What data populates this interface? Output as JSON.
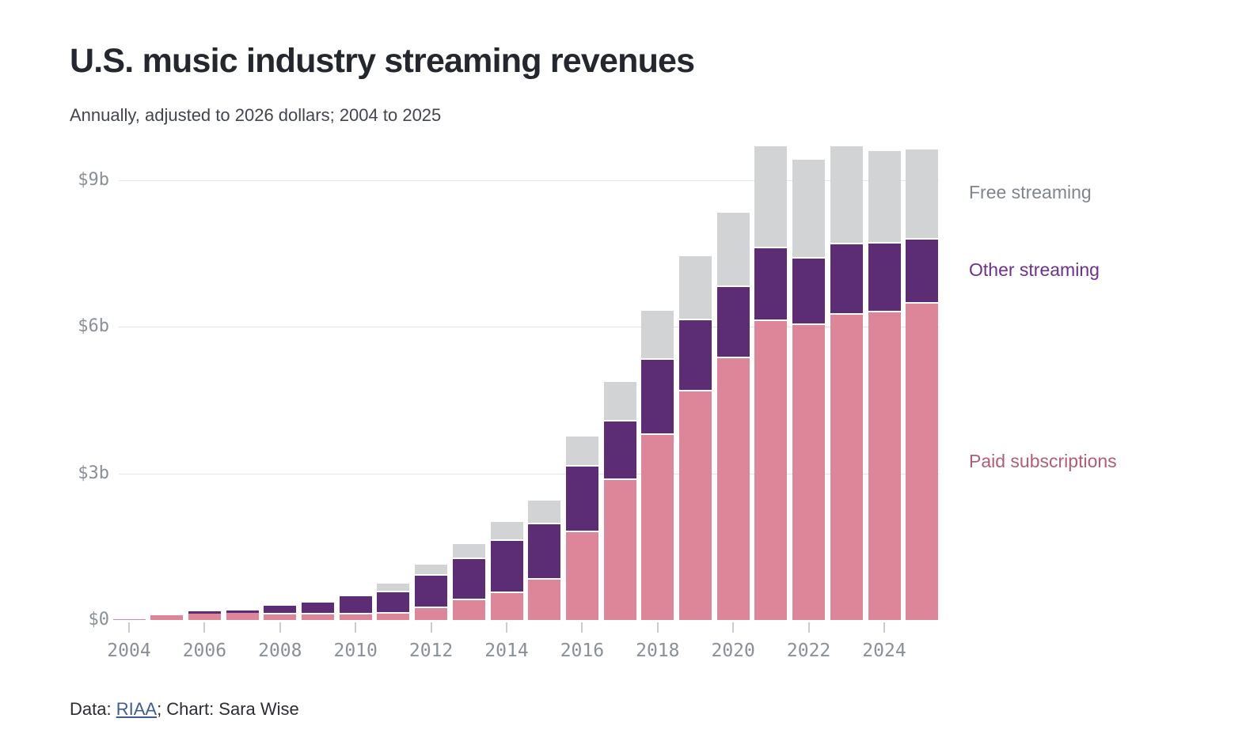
{
  "header": {
    "title": "U.S. music industry streaming revenues",
    "subtitle": "Annually, adjusted to 2026 dollars; 2004 to 2025"
  },
  "footer": {
    "data_prefix": "Data: ",
    "source_link": "RIAA",
    "suffix": "; Chart: Sara Wise"
  },
  "chart_data": {
    "type": "bar",
    "stacked": true,
    "title": "U.S. music industry streaming revenues",
    "subtitle": "Annually, adjusted to 2026 dollars; 2004 to 2025",
    "unit": "billions of 2026 USD",
    "x": [
      2004,
      2005,
      2006,
      2007,
      2008,
      2009,
      2010,
      2011,
      2012,
      2013,
      2014,
      2015,
      2016,
      2017,
      2018,
      2019,
      2020,
      2021,
      2022,
      2023,
      2024,
      2025
    ],
    "series": [
      {
        "name": "Paid subscriptions",
        "color": "#de8699",
        "values": [
          0.02,
          0.1,
          0.13,
          0.15,
          0.12,
          0.12,
          0.12,
          0.13,
          0.25,
          0.4,
          0.55,
          0.82,
          1.79,
          2.86,
          3.79,
          4.68,
          5.36,
          6.12,
          6.04,
          6.25,
          6.29,
          6.48
        ]
      },
      {
        "name": "Other streaming",
        "color": "#5c2c75",
        "values": [
          0,
          0,
          0.04,
          0.05,
          0.17,
          0.24,
          0.37,
          0.44,
          0.65,
          0.85,
          1.07,
          1.13,
          1.35,
          1.2,
          1.54,
          1.45,
          1.46,
          1.48,
          1.36,
          1.43,
          1.41,
          1.3
        ]
      },
      {
        "name": "Free streaming",
        "color": "#d2d3d4",
        "values": [
          0,
          0,
          0,
          0,
          0,
          0,
          0,
          0.17,
          0.23,
          0.31,
          0.39,
          0.5,
          0.62,
          0.81,
          1.0,
          1.31,
          1.51,
          2.1,
          2.01,
          2.02,
          1.9,
          1.85
        ]
      }
    ],
    "y_ticks": [
      {
        "label": "$0",
        "value": 0
      },
      {
        "label": "$3b",
        "value": 3
      },
      {
        "label": "$6b",
        "value": 6
      },
      {
        "label": "$9b",
        "value": 9
      }
    ],
    "x_ticks": [
      2004,
      2006,
      2008,
      2010,
      2012,
      2014,
      2016,
      2018,
      2020,
      2022,
      2024
    ],
    "ylim": [
      0,
      9.9
    ],
    "grid": "horizontal",
    "legend_position": "right",
    "legend": [
      {
        "label": "Free streaming",
        "color": "#7f858d"
      },
      {
        "label": "Other streaming",
        "color": "#6b3192"
      },
      {
        "label": "Paid subscriptions",
        "color": "#b25c76"
      }
    ]
  }
}
